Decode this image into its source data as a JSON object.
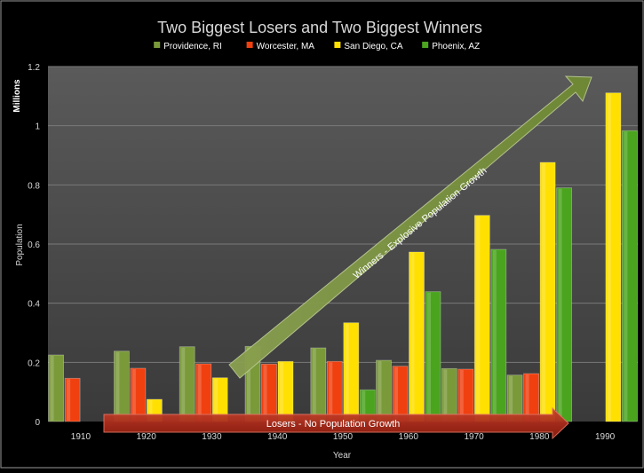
{
  "chart_data": {
    "type": "bar",
    "title": "Two Biggest Losers and Two Biggest Winners",
    "xlabel": "Year",
    "ylabel": "Population",
    "unit_label": "Millions",
    "ylim": [
      0,
      1.2
    ],
    "y_ticks": [
      "0",
      "0.2",
      "0.4",
      "0.6",
      "0.8",
      "1",
      "1.2"
    ],
    "categories": [
      "1910",
      "1920",
      "1930",
      "1940",
      "1950",
      "1960",
      "1970",
      "1980",
      "1990"
    ],
    "legend_position": "top",
    "grid": true,
    "series": [
      {
        "name": "Providence, RI",
        "color": "#7a9a3a",
        "values": [
          0.225,
          0.238,
          0.253,
          0.254,
          0.249,
          0.207,
          0.179,
          0.157,
          null
        ]
      },
      {
        "name": "Worcester, MA",
        "color": "#f04010",
        "values": [
          0.146,
          0.18,
          0.195,
          0.194,
          0.203,
          0.187,
          0.177,
          0.162,
          null
        ]
      },
      {
        "name": "San Diego, CA",
        "color": "#ffe000",
        "values": [
          null,
          0.075,
          0.148,
          0.203,
          0.334,
          0.573,
          0.697,
          0.876,
          1.111
        ]
      },
      {
        "name": "Phoenix, AZ",
        "color": "#4aa41e",
        "values": [
          null,
          null,
          null,
          null,
          0.107,
          0.439,
          0.582,
          0.79,
          0.983
        ]
      }
    ],
    "annotations": {
      "winners": "Winners - Explosive Population Growth",
      "losers": "Losers - No Population Growth"
    }
  }
}
